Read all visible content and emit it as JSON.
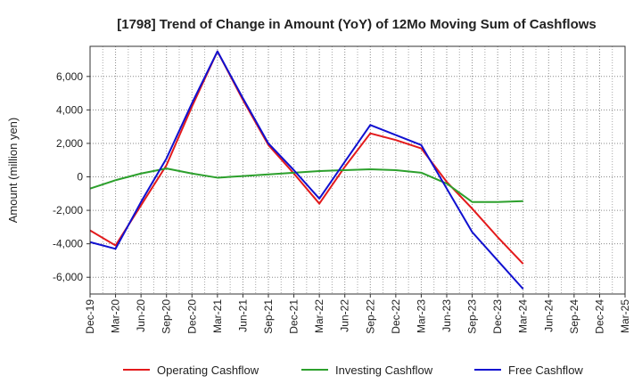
{
  "chart_data": {
    "type": "line",
    "title": "[1798]  Trend of Change in Amount (YoY) of 12Mo Moving Sum of Cashflows",
    "xlabel": "",
    "ylabel": "Amount (million yen)",
    "ylim": [
      -7000,
      7800
    ],
    "yticks": [
      -6000,
      -4000,
      -2000,
      0,
      2000,
      4000,
      6000
    ],
    "ytick_labels": [
      "-6,000",
      "-4,000",
      "-2,000",
      "0",
      "2,000",
      "4,000",
      "6,000"
    ],
    "categories": [
      "Dec-19",
      "Mar-20",
      "Jun-20",
      "Sep-20",
      "Dec-20",
      "Mar-21",
      "Jun-21",
      "Sep-21",
      "Dec-21",
      "Mar-22",
      "Jun-22",
      "Sep-22",
      "Dec-22",
      "Mar-23",
      "Jun-23",
      "Sep-23",
      "Dec-23",
      "Mar-24",
      "Jun-24",
      "Sep-24",
      "Dec-24",
      "Mar-25"
    ],
    "grid": true,
    "legend_position": "bottom",
    "series": [
      {
        "name": "Operating Cashflow",
        "color": "#e31a1c",
        "values": [
          -3200,
          -4100,
          -1700,
          700,
          4200,
          7500,
          4600,
          1900,
          200,
          -1600,
          600,
          2600,
          2200,
          1700,
          -300,
          -1900,
          -3600,
          -5200,
          null,
          null,
          null,
          null
        ]
      },
      {
        "name": "Investing Cashflow",
        "color": "#2ca02c",
        "values": [
          -700,
          -200,
          200,
          500,
          200,
          -50,
          50,
          150,
          250,
          350,
          400,
          450,
          400,
          250,
          -400,
          -1500,
          -1500,
          -1450,
          null,
          null,
          null,
          null
        ]
      },
      {
        "name": "Free Cashflow",
        "color": "#1010d0",
        "values": [
          -3900,
          -4300,
          -1500,
          1100,
          4400,
          7500,
          4700,
          2000,
          400,
          -1300,
          900,
          3100,
          2500,
          1900,
          -700,
          -3300,
          -5000,
          -6700,
          null,
          null,
          null,
          null
        ]
      }
    ]
  }
}
